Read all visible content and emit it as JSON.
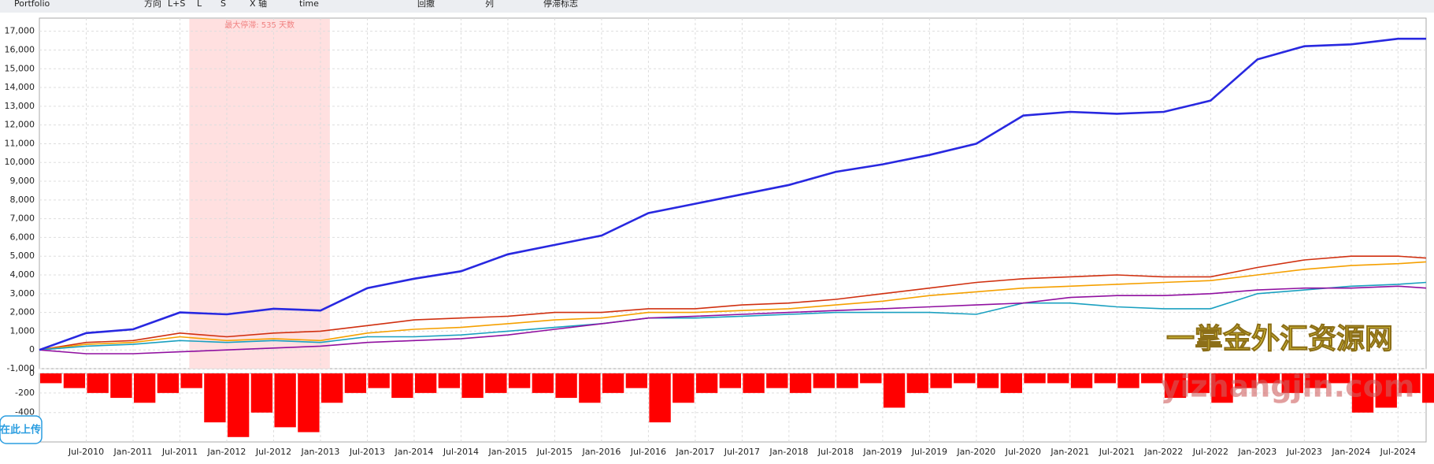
{
  "toolbar": {
    "items": [
      "Portfolio",
      "方向",
      "L+S",
      "L",
      "S",
      "X 轴",
      "time",
      "回撤",
      "列",
      "停滞标志"
    ]
  },
  "upload_button": "在此上传",
  "watermark": {
    "cn": "一掌金外汇资源网",
    "en": "yizhangjin.com"
  },
  "chart_data": [
    {
      "type": "line",
      "annotation": "最大停滞: 535 天数",
      "highlight_range": [
        2011.6,
        2013.1
      ],
      "x": [
        2010.0,
        2010.5,
        2011.0,
        2011.5,
        2012.0,
        2012.5,
        2013.0,
        2013.5,
        2014.0,
        2014.5,
        2015.0,
        2015.5,
        2016.0,
        2016.5,
        2017.0,
        2017.5,
        2018.0,
        2018.5,
        2019.0,
        2019.5,
        2020.0,
        2020.5,
        2021.0,
        2021.5,
        2022.0,
        2022.5,
        2023.0,
        2023.5,
        2024.0,
        2024.5,
        2024.8
      ],
      "series": [
        {
          "color": "#d03010",
          "values": [
            0,
            400,
            500,
            900,
            700,
            900,
            1000,
            1300,
            1600,
            1700,
            1800,
            2000,
            2000,
            2200,
            2200,
            2400,
            2500,
            2700,
            3000,
            3300,
            3600,
            3800,
            3900,
            4000,
            3900,
            3900,
            4400,
            4800,
            5000,
            5000,
            4900
          ]
        },
        {
          "color": "#f5a000",
          "values": [
            0,
            300,
            400,
            700,
            500,
            600,
            500,
            900,
            1100,
            1200,
            1400,
            1600,
            1700,
            2000,
            2000,
            2100,
            2200,
            2400,
            2600,
            2900,
            3100,
            3300,
            3400,
            3500,
            3600,
            3700,
            4000,
            4300,
            4500,
            4600,
            4700
          ]
        },
        {
          "color": "#1aa0c0",
          "values": [
            0,
            200,
            300,
            500,
            400,
            500,
            400,
            700,
            700,
            800,
            1000,
            1200,
            1400,
            1700,
            1700,
            1800,
            1900,
            2000,
            2000,
            2000,
            1900,
            2500,
            2500,
            2300,
            2200,
            2200,
            3000,
            3200,
            3400,
            3500,
            3600
          ]
        },
        {
          "color": "#9010a0",
          "values": [
            0,
            -200,
            -200,
            -100,
            0,
            100,
            200,
            400,
            500,
            600,
            800,
            1100,
            1400,
            1700,
            1800,
            1900,
            2000,
            2100,
            2200,
            2300,
            2400,
            2500,
            2800,
            2900,
            2900,
            3000,
            3200,
            3300,
            3300,
            3400,
            3300
          ]
        },
        {
          "color": "#2828e0",
          "values": [
            0,
            900,
            1100,
            2000,
            1900,
            2200,
            2100,
            3300,
            3800,
            4200,
            5100,
            5600,
            6100,
            7300,
            7800,
            8300,
            8800,
            9500,
            9900,
            10400,
            11000,
            12500,
            12700,
            12600,
            12700,
            13300,
            15500,
            16200,
            16300,
            16600,
            16600
          ]
        }
      ],
      "xlim": [
        2010.0,
        2024.8
      ],
      "ylim": [
        -1000,
        17700
      ],
      "yticks": [
        {
          "value": -1000,
          "label": "-1,000"
        },
        0,
        {
          "value": 1000,
          "label": "1,000"
        },
        {
          "value": 2000,
          "label": "2,000"
        },
        {
          "value": 3000,
          "label": "3,000"
        },
        {
          "value": 4000,
          "label": "4,000"
        },
        {
          "value": 5000,
          "label": "5,000"
        },
        {
          "value": 6000,
          "label": "6,000"
        },
        {
          "value": 7000,
          "label": "7,000"
        },
        {
          "value": 8000,
          "label": "8,000"
        },
        {
          "value": 9000,
          "label": "9,000"
        },
        {
          "value": 10000,
          "label": "10,000"
        },
        {
          "value": 11000,
          "label": "11,000"
        },
        {
          "value": 12000,
          "label": "12,000"
        },
        {
          "value": 13000,
          "label": "13,000"
        },
        {
          "value": 14000,
          "label": "14,000"
        },
        {
          "value": 15000,
          "label": "15,000"
        },
        {
          "value": 16000,
          "label": "16,000"
        },
        {
          "value": 17000,
          "label": "17,000"
        }
      ],
      "grid": true
    },
    {
      "type": "bar",
      "color": "#ff0000",
      "x": [
        2010.0,
        2010.25,
        2010.5,
        2010.75,
        2011.0,
        2011.25,
        2011.5,
        2011.75,
        2012.0,
        2012.25,
        2012.5,
        2012.75,
        2013.0,
        2013.25,
        2013.5,
        2013.75,
        2014.0,
        2014.25,
        2014.5,
        2014.75,
        2015.0,
        2015.25,
        2015.5,
        2015.75,
        2016.0,
        2016.25,
        2016.5,
        2016.75,
        2017.0,
        2017.25,
        2017.5,
        2017.75,
        2018.0,
        2018.25,
        2018.5,
        2018.75,
        2019.0,
        2019.25,
        2019.5,
        2019.75,
        2020.0,
        2020.25,
        2020.5,
        2020.75,
        2021.0,
        2021.25,
        2021.5,
        2021.75,
        2022.0,
        2022.25,
        2022.5,
        2022.75,
        2023.0,
        2023.25,
        2023.5,
        2023.75,
        2024.0,
        2024.25,
        2024.5,
        2024.75
      ],
      "values": [
        -100,
        -150,
        -200,
        -250,
        -300,
        -200,
        -150,
        -500,
        -650,
        -400,
        -550,
        -600,
        -300,
        -200,
        -150,
        -250,
        -200,
        -150,
        -250,
        -200,
        -150,
        -200,
        -250,
        -300,
        -200,
        -150,
        -500,
        -300,
        -200,
        -150,
        -200,
        -150,
        -200,
        -150,
        -150,
        -100,
        -350,
        -200,
        -150,
        -100,
        -150,
        -200,
        -100,
        -100,
        -150,
        -100,
        -150,
        -100,
        -250,
        -200,
        -300,
        -150,
        -100,
        -200,
        -150,
        -100,
        -400,
        -350,
        -200,
        -300
      ],
      "xlim": [
        2010.0,
        2024.8
      ],
      "ylim": [
        -700,
        0
      ],
      "yticks": [
        -400,
        -200,
        0
      ],
      "xticks": [
        {
          "value": 2010.5,
          "label": "Jul-2010"
        },
        {
          "value": 2011.0,
          "label": "Jan-2011"
        },
        {
          "value": 2011.5,
          "label": "Jul-2011"
        },
        {
          "value": 2012.0,
          "label": "Jan-2012"
        },
        {
          "value": 2012.5,
          "label": "Jul-2012"
        },
        {
          "value": 2013.0,
          "label": "Jan-2013"
        },
        {
          "value": 2013.5,
          "label": "Jul-2013"
        },
        {
          "value": 2014.0,
          "label": "Jan-2014"
        },
        {
          "value": 2014.5,
          "label": "Jul-2014"
        },
        {
          "value": 2015.0,
          "label": "Jan-2015"
        },
        {
          "value": 2015.5,
          "label": "Jul-2015"
        },
        {
          "value": 2016.0,
          "label": "Jan-2016"
        },
        {
          "value": 2016.5,
          "label": "Jul-2016"
        },
        {
          "value": 2017.0,
          "label": "Jan-2017"
        },
        {
          "value": 2017.5,
          "label": "Jul-2017"
        },
        {
          "value": 2018.0,
          "label": "Jan-2018"
        },
        {
          "value": 2018.5,
          "label": "Jul-2018"
        },
        {
          "value": 2019.0,
          "label": "Jan-2019"
        },
        {
          "value": 2019.5,
          "label": "Jul-2019"
        },
        {
          "value": 2020.0,
          "label": "Jan-2020"
        },
        {
          "value": 2020.5,
          "label": "Jul-2020"
        },
        {
          "value": 2021.0,
          "label": "Jan-2021"
        },
        {
          "value": 2021.5,
          "label": "Jul-2021"
        },
        {
          "value": 2022.0,
          "label": "Jan-2022"
        },
        {
          "value": 2022.5,
          "label": "Jul-2022"
        },
        {
          "value": 2023.0,
          "label": "Jan-2023"
        },
        {
          "value": 2023.5,
          "label": "Jul-2023"
        },
        {
          "value": 2024.0,
          "label": "Jan-2024"
        },
        {
          "value": 2024.5,
          "label": "Jul-2024"
        }
      ],
      "grid": true
    }
  ]
}
